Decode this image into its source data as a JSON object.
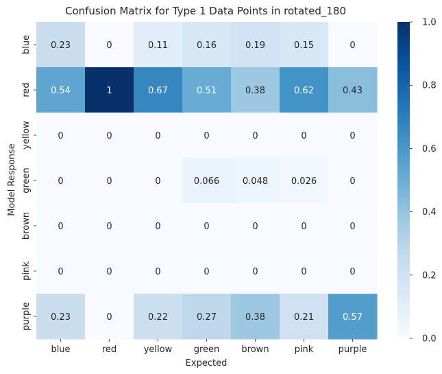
{
  "chart_data": {
    "type": "heatmap",
    "title": "Confusion Matrix for Type 1 Data Points in rotated_180",
    "xlabel": "Expected",
    "ylabel": "Model Response",
    "x_categories": [
      "blue",
      "red",
      "yellow",
      "green",
      "brown",
      "pink",
      "purple"
    ],
    "y_categories": [
      "blue",
      "red",
      "yellow",
      "green",
      "brown",
      "pink",
      "purple"
    ],
    "values": [
      [
        0.23,
        0,
        0.11,
        0.16,
        0.19,
        0.15,
        0
      ],
      [
        0.54,
        1,
        0.67,
        0.51,
        0.38,
        0.62,
        0.43
      ],
      [
        0,
        0,
        0,
        0,
        0,
        0,
        0
      ],
      [
        0,
        0,
        0,
        0.066,
        0.048,
        0.026,
        0
      ],
      [
        0,
        0,
        0,
        0,
        0,
        0,
        0
      ],
      [
        0,
        0,
        0,
        0,
        0,
        0,
        0
      ],
      [
        0.23,
        0,
        0.22,
        0.27,
        0.38,
        0.21,
        0.57
      ]
    ],
    "value_labels": [
      [
        "0.23",
        "0",
        "0.11",
        "0.16",
        "0.19",
        "0.15",
        "0"
      ],
      [
        "0.54",
        "1",
        "0.67",
        "0.51",
        "0.38",
        "0.62",
        "0.43"
      ],
      [
        "0",
        "0",
        "0",
        "0",
        "0",
        "0",
        "0"
      ],
      [
        "0",
        "0",
        "0",
        "0.066",
        "0.048",
        "0.026",
        "0"
      ],
      [
        "0",
        "0",
        "0",
        "0",
        "0",
        "0",
        "0"
      ],
      [
        "0",
        "0",
        "0",
        "0",
        "0",
        "0",
        "0"
      ],
      [
        "0.23",
        "0",
        "0.22",
        "0.27",
        "0.38",
        "0.21",
        "0.57"
      ]
    ],
    "colorbar": {
      "colormap": "Blues",
      "range": [
        0,
        1
      ],
      "ticks": [
        0.0,
        0.2,
        0.4,
        0.6,
        0.8,
        1.0
      ],
      "tick_labels": [
        "0.0",
        "0.2",
        "0.4",
        "0.6",
        "0.8",
        "1.0"
      ]
    }
  }
}
